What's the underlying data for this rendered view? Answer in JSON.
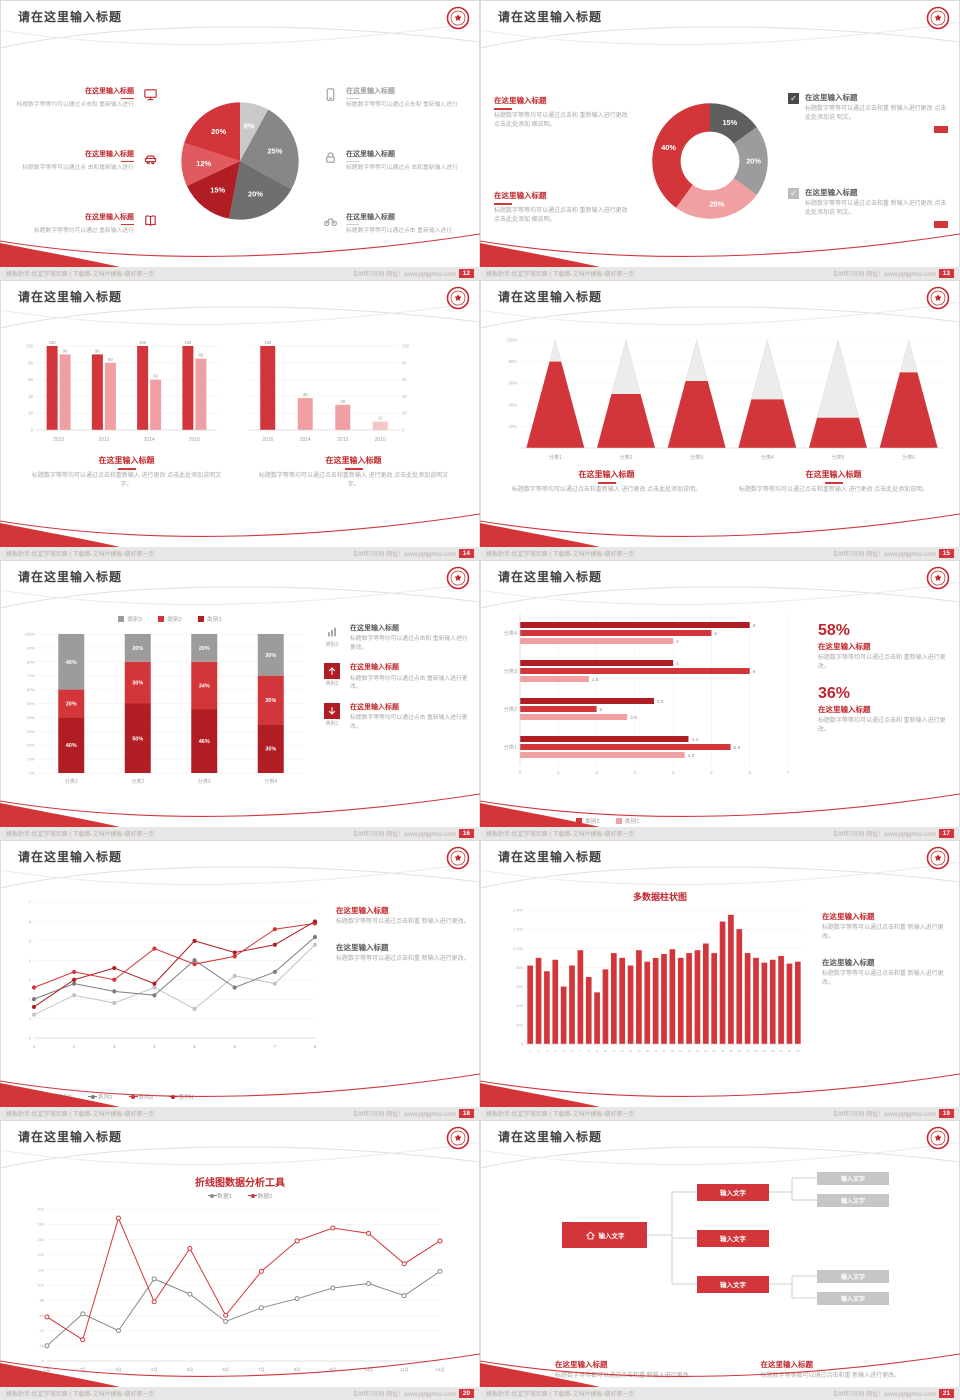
{
  "theme": {
    "red": "#d2363a",
    "dark_red": "#b01e24",
    "pink": "#f0a0a2",
    "pale_pink": "#f6c6c7",
    "dark_gray": "#6f6f6f",
    "mid_gray": "#9a9a9a",
    "light_gray": "#c9c9c9",
    "title_text": "#3f3f3f",
    "body_text": "#aaa8a6"
  },
  "common": {
    "slide_title": "请在这里输入标题",
    "check_glyph": "✓",
    "footer_left": "模板助手:优定学铺页面 | 下载图-文档片模板-做好第一页",
    "footer_right": "【09年7月间 网址：www.pptjgmsu.com"
  },
  "slides": [
    {
      "page_num": "12",
      "type": "pie-callouts",
      "chart_data": {
        "type": "pie",
        "segments": [
          {
            "label": "8%",
            "value": 8,
            "color": "#c9c9c9"
          },
          {
            "label": "25%",
            "value": 25,
            "color": "#878787"
          },
          {
            "label": "20%",
            "value": 20,
            "color": "#6f6f6f"
          },
          {
            "label": "15%",
            "value": 15,
            "color": "#b01e24"
          },
          {
            "label": "12%",
            "value": 12,
            "color": "#e05b5f"
          },
          {
            "label": "20%",
            "value": 20,
            "color": "#d2363a"
          }
        ]
      },
      "left_items": [
        {
          "icon": "monitor",
          "title": "在这里输入标题",
          "variant": "red",
          "body": "标题数字等等均可以通过点击和 重新输入进行"
        },
        {
          "icon": "car",
          "title": "在这里输入标题",
          "variant": "red",
          "body": "标题数字等等可以通过点 击和重新输入进行"
        },
        {
          "icon": "book",
          "title": "在这里输入标题",
          "variant": "red",
          "body": "标题数字等等均可以通过 重新输入进行"
        }
      ],
      "right_items": [
        {
          "icon": "phone",
          "title": "在这里输入标题",
          "variant": "gray",
          "body": "标题数字等等可以通过点击和 重新输入进行"
        },
        {
          "icon": "lock",
          "title": "在这里输入标题",
          "variant": "dark",
          "body": "标题数字等等可以通过点 击和重新输入进行"
        },
        {
          "icon": "bike",
          "title": "在这里输入标题",
          "variant": "dark",
          "body": "标题数字等等可以通过点击 重新输入进行"
        }
      ]
    },
    {
      "page_num": "13",
      "type": "donut-check",
      "chart_data": {
        "type": "donut",
        "segments": [
          {
            "label": "15%",
            "value": 15,
            "color": "#5f5f5f"
          },
          {
            "label": "20%",
            "value": 20,
            "color": "#9c9c9c"
          },
          {
            "label": "25%",
            "value": 25,
            "color": "#f0a0a2"
          },
          {
            "label": "40%",
            "value": 40,
            "color": "#d2363a"
          }
        ]
      },
      "left_blocks": [
        {
          "title": "在这里输入标题",
          "body": "标题数字等等均可以通过点击和 重新输入进行更改 点击此处添加 细说明。"
        },
        {
          "title": "在这里输入标题",
          "body": "标题数字等等均可以通过点击和 重新输入进行更改 点击此处添加 细说明。"
        }
      ],
      "right_blocks": [
        {
          "checkbox_color": "#4a4a4a",
          "title": "在这里输入标题",
          "body": "标题数字等等可以通过点击和重 新输入进行更改 点击此处添加说 明文。"
        },
        {
          "checkbox_color": "#bdbdbd",
          "title": "在这里输入标题",
          "body": "标题数字等等可以通过点击和重 新输入进行更改 点击此处添加说 明文。"
        }
      ]
    },
    {
      "page_num": "14",
      "type": "dual-bars",
      "chart_left": {
        "type": "bar",
        "categories": [
          "2010",
          "2012",
          "2014",
          "2016"
        ],
        "series": [
          {
            "name": "系列1",
            "color": "#d2363a",
            "values": [
              100,
              90,
              100,
              100
            ]
          },
          {
            "name": "系列2",
            "color": "#f0a0a2",
            "values": [
              90,
              80,
              60,
              85
            ]
          }
        ],
        "max": 100,
        "ticks": [
          0,
          20,
          40,
          60,
          80,
          100
        ]
      },
      "chart_right": {
        "type": "bar",
        "categories": [
          "2016",
          "2014",
          "2012",
          "2010"
        ],
        "values": [
          100,
          38,
          30,
          10
        ],
        "colors": [
          "#d2363a",
          "#f0a0a2",
          "#f0a0a2",
          "#f6c6c7"
        ],
        "max": 100,
        "ticks": [
          0,
          20,
          40,
          60,
          80,
          100
        ],
        "axisRight": true
      },
      "blocks": [
        {
          "title": "在这里输入标题",
          "body": "标题数字等等均可以通过点击和重新输入 进行更改 点击此处添加说明文字。"
        },
        {
          "title": "在这里输入标题",
          "body": "标题数字等等均可以通过点击和重新输入 进行更改 点击此处添加说明文字。"
        }
      ]
    },
    {
      "page_num": "15",
      "type": "pyramids",
      "chart_data": {
        "type": "pyramid",
        "categories": [
          "分类1",
          "分类2",
          "分类3",
          "分类4",
          "分类5",
          "分类6"
        ],
        "fill_percent": [
          80,
          50,
          62,
          45,
          28,
          70
        ],
        "yticks": [
          "20%",
          "40%",
          "60%",
          "80%",
          "100%"
        ]
      },
      "blocks": [
        {
          "title": "在这里输入标题",
          "body": "标题数字等等均可以通过点击和重新输入 进行更改 点击此处添加说明。"
        },
        {
          "title": "在这里输入标题",
          "body": "标题数字等等均可以通过点击和重新输入 进行更改 点击此处添加说明。"
        }
      ]
    },
    {
      "page_num": "16",
      "type": "stacked",
      "chart_data": {
        "type": "stacked-bar",
        "categories": [
          "分类1",
          "分类2",
          "分类3",
          "分类4"
        ],
        "legend": [
          {
            "name": "类别3",
            "color": "#9c9c9c"
          },
          {
            "name": "类别2",
            "color": "#d2363a"
          },
          {
            "name": "类别1",
            "color": "#b01e24"
          }
        ],
        "columns": [
          {
            "segments": [
              {
                "value": 40,
                "label": "40%",
                "color": "#b01e24"
              },
              {
                "value": 20,
                "label": "20%",
                "color": "#d2363a"
              },
              {
                "value": 40,
                "label": "40%",
                "color": "#9c9c9c"
              }
            ]
          },
          {
            "segments": [
              {
                "value": 50,
                "label": "50%",
                "color": "#b01e24"
              },
              {
                "value": 30,
                "label": "30%",
                "color": "#d2363a"
              },
              {
                "value": 20,
                "label": "20%",
                "color": "#9c9c9c"
              }
            ]
          },
          {
            "segments": [
              {
                "value": 46,
                "label": "46%",
                "color": "#b01e24"
              },
              {
                "value": 34,
                "label": "34%",
                "color": "#d2363a"
              },
              {
                "value": 20,
                "label": "20%",
                "color": "#9c9c9c"
              }
            ]
          },
          {
            "segments": [
              {
                "value": 35,
                "label": "35%",
                "color": "#b01e24"
              },
              {
                "value": 35,
                "label": "35%",
                "color": "#d2363a"
              },
              {
                "value": 30,
                "label": "30%",
                "color": "#9c9c9c"
              }
            ]
          }
        ],
        "yticks": [
          "0%",
          "10%",
          "20%",
          "30%",
          "40%",
          "50%",
          "60%",
          "70%",
          "80%",
          "90%",
          "100%"
        ]
      },
      "right_items": [
        {
          "icon": "chart-bars",
          "icon_label": "类别3",
          "title": "在这里输入标题",
          "variant": "dark",
          "body": "标题数字等等均可以通过点击和 重新输入进行更改。"
        },
        {
          "icon": "arrow-up",
          "icon_label": "类别2",
          "title": "在这里输入标题",
          "variant": "red",
          "body": "标题数字等等均可以通过点击 重新输入进行更改。"
        },
        {
          "icon": "arrow-down",
          "icon_label": "类别1",
          "title": "在这里输入标题",
          "variant": "red",
          "body": "标题数字等等均可以通过点击 重新输入进行更改。"
        }
      ]
    },
    {
      "page_num": "17",
      "type": "hbars",
      "chart_data": {
        "type": "hbar",
        "groups": [
          {
            "name": "分类4",
            "values": [
              6,
              5,
              4
            ]
          },
          {
            "name": "分类3",
            "values": [
              4,
              6,
              1.8
            ]
          },
          {
            "name": "分类2",
            "values": [
              3.5,
              2,
              2.8
            ]
          },
          {
            "name": "分类1",
            "values": [
              4.4,
              5.5,
              4.3
            ]
          }
        ],
        "series_colors": [
          "#b01e24",
          "#d2363a",
          "#f0a0a2"
        ],
        "legend": [
          {
            "name": "类别3",
            "color": "#b01e24"
          },
          {
            "name": "类别2",
            "color": "#d2363a"
          },
          {
            "name": "类别1",
            "color": "#f0a0a2"
          }
        ],
        "xticks": [
          0,
          1,
          2,
          3,
          4,
          5,
          6,
          7
        ],
        "max": 7
      },
      "stats": [
        {
          "pct": "58%",
          "title": "在这里输入标题",
          "body": "标题数字等等均可以通过点击和 重新输入进行更改。"
        },
        {
          "pct": "36%",
          "title": "在这里输入标题",
          "body": "标题数字等等均可以通过点击和 重新输入进行更改。"
        }
      ]
    },
    {
      "page_num": "18",
      "type": "multiline",
      "chart_data": {
        "type": "line",
        "x": [
          "1",
          "2",
          "3",
          "4",
          "5",
          "6",
          "7",
          "8"
        ],
        "max": 7,
        "yticks": [
          0,
          1,
          2,
          3,
          4,
          5,
          6,
          7
        ],
        "series": [
          {
            "name": "系列1",
            "color": "#c3c3c3",
            "values": [
              1.2,
              2.2,
              1.8,
              2.6,
              1.5,
              3.2,
              2.8,
              4.8
            ]
          },
          {
            "name": "系列2",
            "color": "#7d7d7d",
            "values": [
              2.0,
              2.8,
              2.4,
              2.2,
              4.0,
              2.6,
              3.4,
              5.2
            ]
          },
          {
            "name": "系列3",
            "color": "#d2363a",
            "values": [
              2.6,
              3.4,
              3.0,
              4.6,
              3.8,
              4.2,
              5.6,
              5.9
            ]
          },
          {
            "name": "系列4",
            "color": "#b01e24",
            "values": [
              1.6,
              3.0,
              3.6,
              2.8,
              5.0,
              4.4,
              4.8,
              6.0
            ]
          }
        ]
      },
      "blocks": [
        {
          "title": "在这里输入标题",
          "variant": "red",
          "body": "标题数字等等可以通过点击和重 新输入进行更改。"
        },
        {
          "title": "在这里输入标题",
          "variant": "dark",
          "body": "标题数字等等可以通过点击和重 新输入进行更改。"
        }
      ]
    },
    {
      "page_num": "19",
      "type": "columns",
      "chart_data": {
        "type": "bar",
        "title": "多数据柱状图",
        "max": 1400,
        "yticks": [
          "0",
          "200",
          "400",
          "600",
          "800",
          "1,000",
          "1,200",
          "1,400"
        ],
        "x_labels": [
          "1",
          "2",
          "3",
          "4",
          "5",
          "6",
          "7",
          "8",
          "9",
          "10",
          "11",
          "12",
          "13",
          "14",
          "15",
          "16",
          "17",
          "18",
          "19",
          "20",
          "21",
          "22",
          "23",
          "24",
          "25",
          "26",
          "27",
          "28",
          "29",
          "30",
          "31",
          "32",
          "33"
        ],
        "values": [
          820,
          900,
          760,
          880,
          600,
          820,
          980,
          700,
          540,
          780,
          950,
          900,
          820,
          980,
          860,
          900,
          940,
          990,
          900,
          950,
          980,
          1050,
          950,
          1280,
          1350,
          1200,
          950,
          900,
          850,
          880,
          920,
          840,
          860
        ]
      },
      "blocks": [
        {
          "title": "在这里输入标题",
          "variant": "red",
          "body": "标题数字等等可以通过点击和重 新输入进行更改。"
        },
        {
          "title": "在这里输入标题",
          "variant": "dark",
          "body": "标题数字等等可以通过点击和重 新输入进行更改。"
        }
      ]
    },
    {
      "page_num": "20",
      "type": "twoline",
      "chart_data": {
        "type": "line",
        "title": "折线图数据分析工具",
        "max": 200,
        "yticks": [
          0,
          20,
          40,
          60,
          80,
          100,
          120,
          140,
          160,
          180,
          200
        ],
        "categories": [
          "1月",
          "2月",
          "3月",
          "4月",
          "5月",
          "6月",
          "7月",
          "8月",
          "9月",
          "10月",
          "11月",
          "12月"
        ],
        "series": [
          {
            "name": "数据1",
            "color": "#8a8a8a",
            "values": [
              20,
              62,
              40,
              108,
              88,
              52,
              70,
              82,
              96,
              102,
              86,
              118
            ]
          },
          {
            "name": "数据2",
            "color": "#d2363a",
            "values": [
              58,
              28,
              188,
              78,
              148,
              60,
              118,
              158,
              175,
              168,
              128,
              158
            ]
          }
        ]
      },
      "blocks": []
    },
    {
      "page_num": "21",
      "type": "orgchart",
      "diagram": {
        "root": {
          "label": "输入文字",
          "icon": "home"
        },
        "mid": [
          {
            "label": "输入文字"
          },
          {
            "label": "输入文字"
          },
          {
            "label": "输入文字"
          }
        ],
        "leaf": [
          {
            "label": "输入文字"
          },
          {
            "label": "输入文字"
          },
          {
            "label": "输入文字"
          },
          {
            "label": "输入文字"
          }
        ]
      },
      "blocks": [
        {
          "title": "在这里输入标题",
          "body": "标题数字等等都可以通过点击和重 新输入进行更改。"
        },
        {
          "title": "在这里输入标题",
          "body": "标题数字等等都可以通过点击和重 新输入进行更改。"
        }
      ]
    }
  ]
}
